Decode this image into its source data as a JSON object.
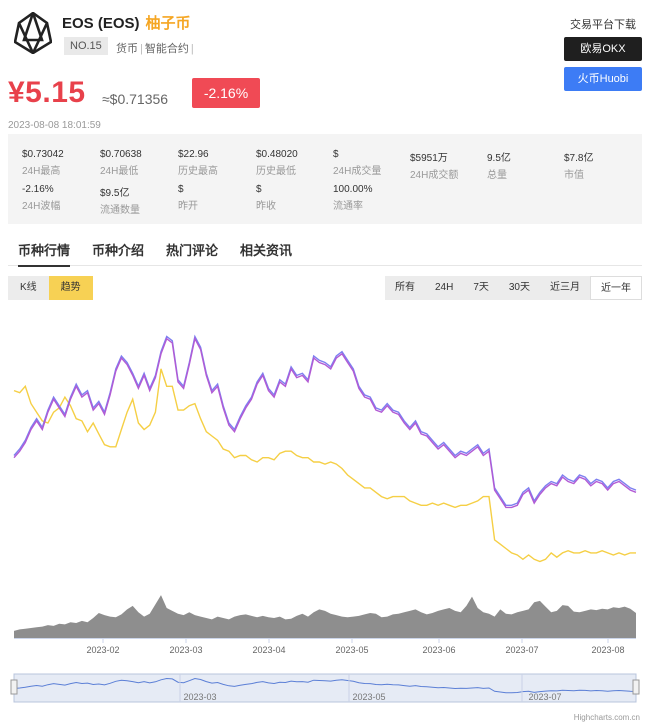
{
  "coin": {
    "name": "EOS (EOS)",
    "cn_name": "柚子币",
    "rank": "NO.15",
    "tags": [
      "货币",
      "智能合约"
    ],
    "price": "¥5.15",
    "usd_price": "≈$0.71356",
    "change": "-2.16%",
    "timestamp": "2023-08-08 18:01:59"
  },
  "exchange": {
    "title": "交易平台下载",
    "okx": "欧易OKX",
    "huobi": "火币Huobi"
  },
  "stats": [
    {
      "value": "$0.73042",
      "label": "24H最高"
    },
    {
      "value": "$0.70638",
      "label": "24H最低"
    },
    {
      "value": "$22.96",
      "label": "历史最高"
    },
    {
      "value": "$0.48020",
      "label": "历史最低"
    },
    {
      "value": "$",
      "label": "24H成交量"
    },
    {
      "value": "$5951万",
      "label": "24H成交额"
    },
    {
      "value": "9.5亿",
      "label": "总量"
    },
    {
      "value": "$7.8亿",
      "label": "市值"
    },
    {
      "value": "-2.16%",
      "label": "24H波幅"
    },
    {
      "value": "$9.5亿",
      "label": "流通数量"
    },
    {
      "value": "$",
      "label": "昨开"
    },
    {
      "value": "$",
      "label": "昨收"
    },
    {
      "value": "100.00%",
      "label": "流通率"
    }
  ],
  "tabs": [
    "币种行情",
    "币种介绍",
    "热门评论",
    "相关资讯"
  ],
  "chart_type": [
    "K线",
    "趋势"
  ],
  "ranges": [
    "所有",
    "24H",
    "7天",
    "30天",
    "近三月",
    "近一年"
  ],
  "credit": "Highcharts.com.cn",
  "chart_data": {
    "type": "line",
    "x_ticks": [
      "2023-02",
      "2023-03",
      "2023-04",
      "2023-05",
      "2023-06",
      "2023-07",
      "2023-08"
    ],
    "navigator_ticks": [
      "2023-03",
      "2023-05",
      "2023-07"
    ],
    "colors": {
      "price_1": "#7d7ff0",
      "price_2": "#b25ad4",
      "price_3": "#f5cf45",
      "volume": "#8e8e8e"
    },
    "series": [
      {
        "values": [
          0.97,
          1.0,
          1.04,
          1.1,
          1.14,
          1.1,
          1.18,
          1.24,
          1.2,
          1.16,
          1.24,
          1.3,
          1.25,
          1.27,
          1.19,
          1.22,
          1.17,
          1.26,
          1.37,
          1.43,
          1.4,
          1.35,
          1.29,
          1.35,
          1.28,
          1.34,
          1.45,
          1.52,
          1.5,
          1.32,
          1.29,
          1.4,
          1.52,
          1.47,
          1.35,
          1.27,
          1.3,
          1.2,
          1.12,
          1.09,
          1.15,
          1.2,
          1.24,
          1.31,
          1.35,
          1.28,
          1.25,
          1.32,
          1.3,
          1.38,
          1.34,
          1.35,
          1.32,
          1.43,
          1.41,
          1.4,
          1.38,
          1.43,
          1.45,
          1.41,
          1.37,
          1.29,
          1.25,
          1.24,
          1.19,
          1.18,
          1.21,
          1.18,
          1.17,
          1.13,
          1.1,
          1.13,
          1.08,
          1.07,
          1.04,
          1.01,
          1.03,
          1.0,
          0.97,
          0.99,
          0.98,
          1.0,
          1.02,
          0.98,
          1.0,
          0.82,
          0.78,
          0.74,
          0.74,
          0.75,
          0.8,
          0.82,
          0.76,
          0.8,
          0.83,
          0.85,
          0.84,
          0.88,
          0.86,
          0.85,
          0.88,
          0.87,
          0.84,
          0.86,
          0.85,
          0.82,
          0.85,
          0.86,
          0.84,
          0.82,
          0.81
        ]
      },
      {
        "values": [
          0.96,
          0.99,
          1.03,
          1.09,
          1.13,
          1.09,
          1.17,
          1.23,
          1.19,
          1.15,
          1.23,
          1.29,
          1.24,
          1.26,
          1.18,
          1.21,
          1.16,
          1.25,
          1.36,
          1.42,
          1.39,
          1.34,
          1.28,
          1.34,
          1.27,
          1.33,
          1.44,
          1.51,
          1.49,
          1.31,
          1.28,
          1.39,
          1.51,
          1.46,
          1.34,
          1.26,
          1.29,
          1.19,
          1.11,
          1.08,
          1.14,
          1.19,
          1.23,
          1.3,
          1.34,
          1.27,
          1.24,
          1.31,
          1.29,
          1.37,
          1.33,
          1.34,
          1.31,
          1.42,
          1.4,
          1.39,
          1.37,
          1.42,
          1.44,
          1.4,
          1.36,
          1.28,
          1.24,
          1.23,
          1.18,
          1.17,
          1.2,
          1.17,
          1.16,
          1.12,
          1.09,
          1.12,
          1.07,
          1.06,
          1.03,
          1.0,
          1.02,
          0.99,
          0.96,
          0.98,
          0.97,
          0.99,
          1.01,
          0.97,
          0.99,
          0.81,
          0.77,
          0.73,
          0.73,
          0.74,
          0.79,
          0.81,
          0.75,
          0.79,
          0.82,
          0.84,
          0.83,
          0.87,
          0.85,
          0.84,
          0.87,
          0.86,
          0.83,
          0.85,
          0.84,
          0.81,
          0.84,
          0.85,
          0.83,
          0.81,
          0.8
        ]
      },
      {
        "values": [
          1.27,
          1.26,
          1.29,
          1.21,
          1.17,
          1.13,
          1.12,
          1.17,
          1.19,
          1.24,
          1.2,
          1.14,
          1.13,
          1.08,
          1.12,
          1.07,
          1.02,
          1.01,
          1.01,
          1.09,
          1.17,
          1.23,
          1.12,
          1.09,
          1.11,
          1.17,
          1.37,
          1.29,
          1.29,
          1.18,
          1.18,
          1.2,
          1.21,
          1.14,
          1.08,
          1.06,
          1.04,
          1.0,
          0.99,
          0.96,
          0.97,
          0.97,
          0.95,
          0.94,
          0.96,
          0.96,
          0.95,
          0.98,
          0.99,
          0.99,
          0.97,
          0.96,
          0.96,
          0.94,
          0.94,
          0.93,
          0.94,
          0.93,
          0.91,
          0.88,
          0.86,
          0.84,
          0.82,
          0.82,
          0.8,
          0.78,
          0.77,
          0.78,
          0.78,
          0.78,
          0.76,
          0.75,
          0.74,
          0.74,
          0.75,
          0.74,
          0.75,
          0.74,
          0.73,
          0.74,
          0.74,
          0.75,
          0.76,
          0.78,
          0.78,
          0.58,
          0.56,
          0.54,
          0.52,
          0.51,
          0.49,
          0.51,
          0.49,
          0.48,
          0.49,
          0.52,
          0.5,
          0.52,
          0.53,
          0.52,
          0.52,
          0.53,
          0.52,
          0.52,
          0.53,
          0.52,
          0.51,
          0.52,
          0.51,
          0.52,
          0.52
        ]
      },
      {
        "values": [
          10,
          12,
          13,
          14,
          15,
          16,
          18,
          17,
          20,
          19,
          22,
          21,
          24,
          22,
          28,
          35,
          32,
          30,
          29,
          33,
          40,
          45,
          36,
          30,
          34,
          47,
          60,
          42,
          38,
          34,
          32,
          36,
          32,
          30,
          28,
          26,
          30,
          28,
          26,
          30,
          32,
          33,
          31,
          29,
          31,
          29,
          28,
          30,
          26,
          27,
          31,
          34,
          30,
          36,
          40,
          38,
          34,
          32,
          30,
          29,
          30,
          31,
          33,
          35,
          34,
          29,
          30,
          33,
          34,
          36,
          38,
          40,
          36,
          33,
          35,
          38,
          40,
          42,
          38,
          36,
          45,
          58,
          42,
          36,
          34,
          30,
          40,
          34,
          33,
          36,
          38,
          40,
          50,
          52,
          44,
          36,
          38,
          46,
          45,
          37,
          36,
          38,
          40,
          39,
          41,
          40,
          43,
          42,
          44,
          41,
          35
        ]
      }
    ],
    "volume_max": 70,
    "price_range": [
      0.45,
      1.55
    ],
    "navigator": true
  }
}
